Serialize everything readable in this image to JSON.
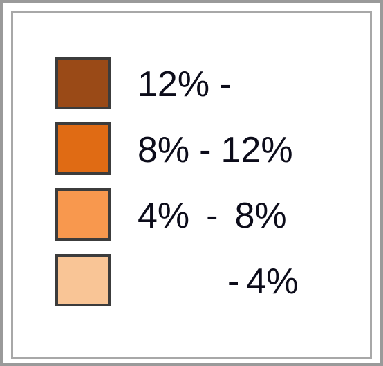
{
  "legend": {
    "items": [
      {
        "color": "#9a4a17",
        "min": "12%",
        "max": ""
      },
      {
        "color": "#e06b14",
        "min": "8%",
        "max": "12%"
      },
      {
        "color": "#f8984e",
        "min": "4%",
        "max": "8%"
      },
      {
        "color": "#f9c596",
        "min": "",
        "max": "4%"
      }
    ],
    "separator": "-"
  }
}
